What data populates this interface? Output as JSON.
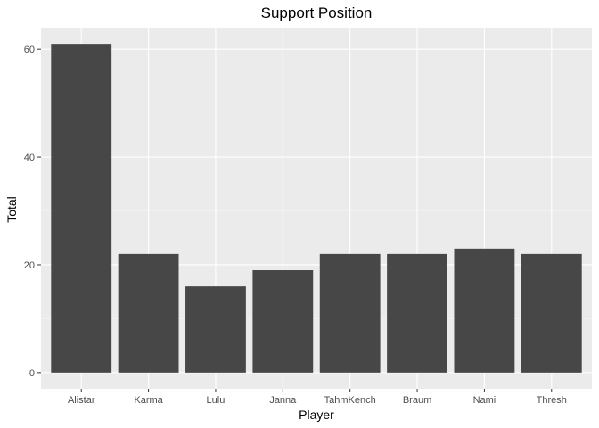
{
  "chart_data": {
    "type": "bar",
    "title": "Support Position",
    "xlabel": "Player",
    "ylabel": "Total",
    "categories": [
      "Alistar",
      "Karma",
      "Lulu",
      "Janna",
      "TahmKench",
      "Braum",
      "Nami",
      "Thresh"
    ],
    "values": [
      61,
      22,
      16,
      19,
      22,
      22,
      23,
      22
    ],
    "ylim": [
      -3,
      64
    ],
    "yticks": [
      0,
      20,
      40,
      60
    ],
    "grid": true,
    "legend": "none",
    "colors": {
      "bar": "#474747",
      "panel": "#EBEBEB",
      "grid": "#FFFFFF"
    }
  }
}
